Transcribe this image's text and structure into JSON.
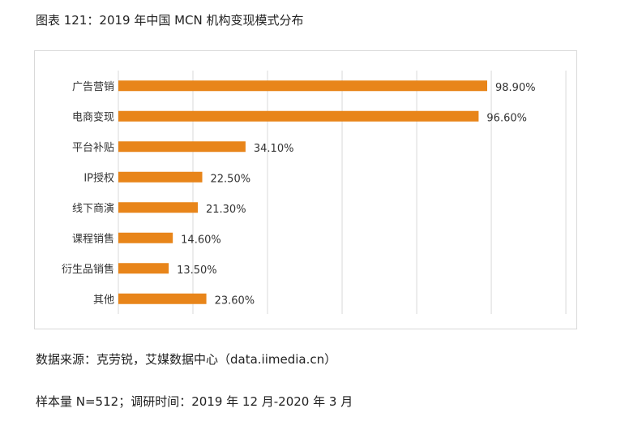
{
  "title": "图表 121：2019 年中国 MCN 机构变现模式分布",
  "source": "数据来源：克劳锐，艾媒数据中心（data.iimedia.cn）",
  "note": "样本量 N=512；调研时间：2019 年 12 月-2020 年 3 月",
  "chart_data": {
    "type": "bar",
    "orientation": "horizontal",
    "categories": [
      "广告营销",
      "电商变现",
      "平台补贴",
      "IP授权",
      "线下商演",
      "课程销售",
      "衍生品销售",
      "其他"
    ],
    "values": [
      98.9,
      96.6,
      34.1,
      22.5,
      21.3,
      14.6,
      13.5,
      23.6
    ],
    "data_labels": [
      "98.90%",
      "96.60%",
      "34.10%",
      "22.50%",
      "21.30%",
      "14.60%",
      "13.50%",
      "23.60%"
    ],
    "xlim": [
      0,
      120
    ],
    "grid": true,
    "bar_color": "#E8851A"
  }
}
